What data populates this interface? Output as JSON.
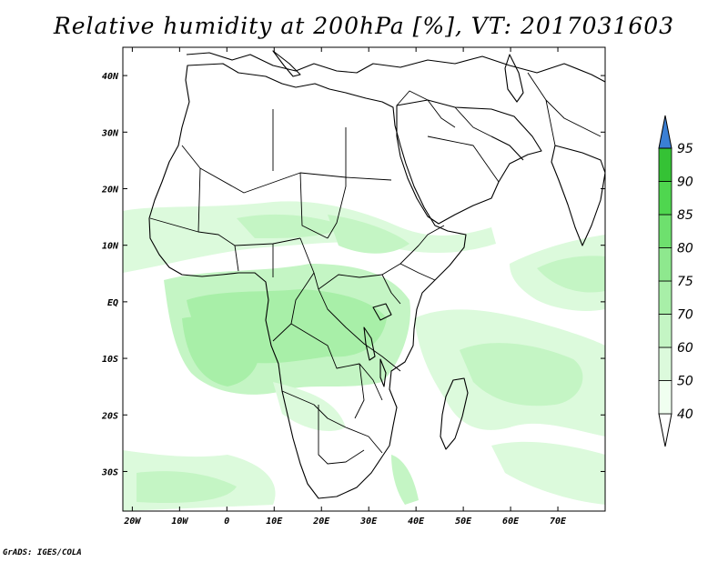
{
  "title": "Relative humidity at 200hPa [%], VT: 2017031603",
  "credit": "GrADS: IGES/COLA",
  "map": {
    "lon_range": [
      -22,
      80
    ],
    "lat_range": [
      -37,
      45
    ],
    "x_ticks": [
      {
        "lon": -20,
        "label": "20W"
      },
      {
        "lon": -10,
        "label": "10W"
      },
      {
        "lon": 0,
        "label": "0"
      },
      {
        "lon": 10,
        "label": "10E"
      },
      {
        "lon": 20,
        "label": "20E"
      },
      {
        "lon": 30,
        "label": "30E"
      },
      {
        "lon": 40,
        "label": "40E"
      },
      {
        "lon": 50,
        "label": "50E"
      },
      {
        "lon": 60,
        "label": "60E"
      },
      {
        "lon": 70,
        "label": "70E"
      }
    ],
    "y_ticks": [
      {
        "lat": 40,
        "label": "40N"
      },
      {
        "lat": 30,
        "label": "30N"
      },
      {
        "lat": 20,
        "label": "20N"
      },
      {
        "lat": 10,
        "label": "10N"
      },
      {
        "lat": 0,
        "label": "EQ"
      },
      {
        "lat": -10,
        "label": "10S"
      },
      {
        "lat": -20,
        "label": "20S"
      },
      {
        "lat": -30,
        "label": "30S"
      }
    ]
  },
  "colorbar": {
    "levels": [
      {
        "label": "40",
        "color": "#f0fff0"
      },
      {
        "label": "50",
        "color": "#dcfadc"
      },
      {
        "label": "60",
        "color": "#c4f5c4"
      },
      {
        "label": "70",
        "color": "#a8efa8"
      },
      {
        "label": "75",
        "color": "#8ee88e"
      },
      {
        "label": "80",
        "color": "#6ee06e"
      },
      {
        "label": "85",
        "color": "#4fd64f"
      },
      {
        "label": "90",
        "color": "#35c235"
      },
      {
        "label": "95",
        "color": "#22a822"
      }
    ],
    "over_color": "#3a7fd5",
    "under_color": "#ffffff"
  }
}
